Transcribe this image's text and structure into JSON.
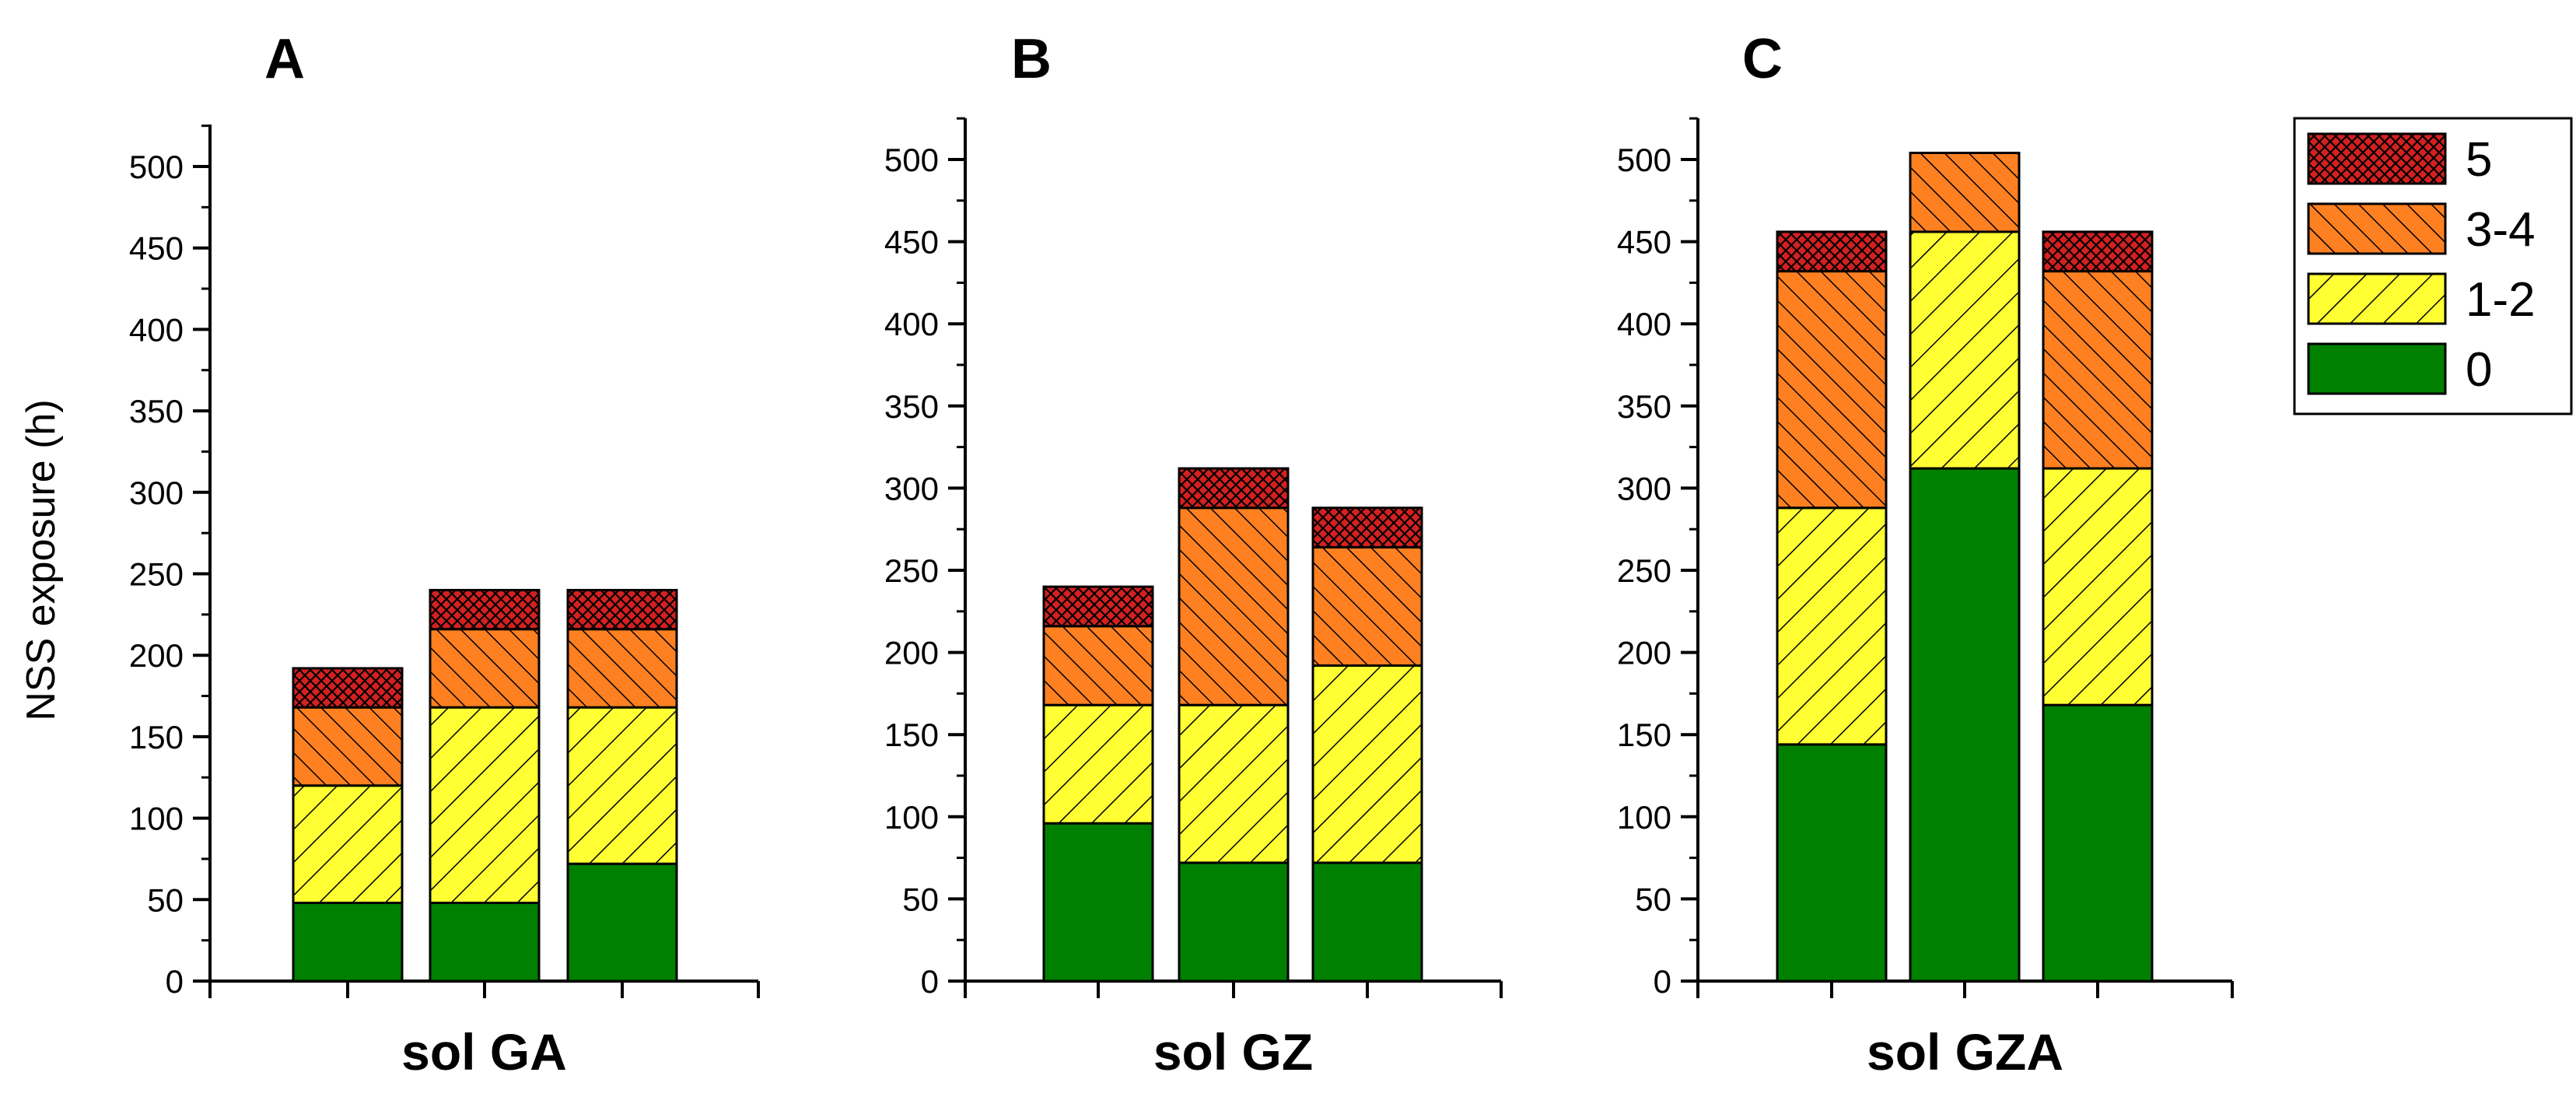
{
  "chart_data": {
    "type": "bar",
    "stacked": true,
    "ylabel": "NSS exposure (h)",
    "ylim": [
      0,
      525
    ],
    "yticks": [
      0,
      50,
      100,
      150,
      200,
      250,
      300,
      350,
      400,
      450,
      500
    ],
    "legend": {
      "placement": "top-right",
      "entries": [
        {
          "label": "5",
          "color": "#d42020",
          "pattern": "crosshatch"
        },
        {
          "label": "3-4",
          "color": "#ff8020",
          "pattern": "hatch-forward"
        },
        {
          "label": "1-2",
          "color": "#ffff33",
          "pattern": "hatch-back"
        },
        {
          "label": "0",
          "color": "#008000",
          "pattern": "solid"
        }
      ]
    },
    "series_order": [
      "0",
      "1-2",
      "3-4",
      "5"
    ],
    "panels": [
      {
        "letter": "A",
        "xlabel": "sol GA",
        "bars": [
          {
            "0": 48,
            "1-2": 72,
            "3-4": 48,
            "5": 24
          },
          {
            "0": 48,
            "1-2": 120,
            "3-4": 48,
            "5": 24
          },
          {
            "0": 72,
            "1-2": 96,
            "3-4": 48,
            "5": 24
          }
        ]
      },
      {
        "letter": "B",
        "xlabel": "sol GZ",
        "bars": [
          {
            "0": 96,
            "1-2": 72,
            "3-4": 48,
            "5": 24
          },
          {
            "0": 72,
            "1-2": 96,
            "3-4": 120,
            "5": 24
          },
          {
            "0": 72,
            "1-2": 120,
            "3-4": 72,
            "5": 24
          }
        ]
      },
      {
        "letter": "C",
        "xlabel": "sol GZA",
        "bars": [
          {
            "0": 144,
            "1-2": 144,
            "3-4": 144,
            "5": 24
          },
          {
            "0": 312,
            "1-2": 144,
            "3-4": 48,
            "5": 0
          },
          {
            "0": 168,
            "1-2": 144,
            "3-4": 120,
            "5": 24
          }
        ]
      }
    ]
  }
}
